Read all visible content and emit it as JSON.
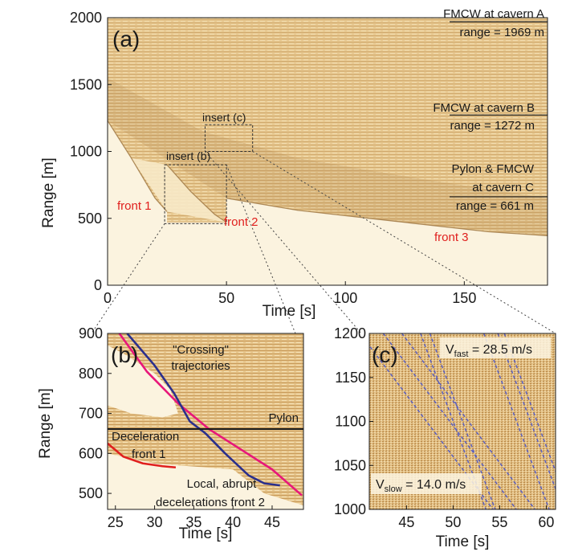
{
  "colors": {
    "background": "#ffffff",
    "data_light": "#fbf3df",
    "data_mid": "#e8c98f",
    "data_dark": "#b98c4c",
    "front_text": "#e0201e",
    "magenta_line": "#e8177a",
    "blue_line": "#2b2f8c",
    "dashed_blue": "#5a5fc0"
  },
  "chart_data": [
    {
      "id": "a",
      "type": "heatmap",
      "panel_label": "(a)",
      "xlabel": "Time [s]",
      "ylabel": "Range [m]",
      "xlim": [
        0,
        185
      ],
      "ylim": [
        0,
        2000
      ],
      "xticks": [
        "0",
        "50",
        "100",
        "150"
      ],
      "xtick_values": [
        0,
        50,
        100,
        150
      ],
      "yticks": [
        "0",
        "500",
        "1000",
        "1500",
        "2000"
      ],
      "ytick_values": [
        0,
        500,
        1000,
        1500,
        2000
      ],
      "annotations": {
        "cavern_a_title": "FMCW at cavern A",
        "cavern_a_range": "range = 1969 m",
        "cavern_a_value": 1969,
        "cavern_b_title": "FMCW at cavern B",
        "cavern_b_range": "range = 1272 m",
        "cavern_b_value": 1272,
        "cavern_c_title": "Pylon & FMCW",
        "cavern_c_title2": "at cavern C",
        "cavern_c_range": "range = 661 m",
        "cavern_c_value": 661,
        "insert_b": "insert (b)",
        "insert_c": "insert (c)",
        "front_1": "front 1",
        "front_2": "front 2",
        "front_3": "front 3"
      },
      "insert_b_box": {
        "t": [
          24,
          50
        ],
        "r": [
          460,
          900
        ]
      },
      "insert_c_box": {
        "t": [
          41,
          61
        ],
        "r": [
          1000,
          1200
        ]
      },
      "front_edges": [
        {
          "name": "front 1",
          "t": [
            0,
            10,
            20,
            25
          ],
          "r": [
            1230,
            950,
            650,
            550
          ]
        },
        {
          "name": "front 2",
          "t": [
            25,
            35,
            45,
            50
          ],
          "r": [
            900,
            700,
            530,
            470
          ]
        },
        {
          "name": "front 3",
          "t": [
            50,
            80,
            120,
            160,
            185
          ],
          "r": [
            650,
            560,
            480,
            400,
            370
          ]
        }
      ]
    },
    {
      "id": "b",
      "type": "heatmap",
      "panel_label": "(b)",
      "xlabel": "Time [s]",
      "ylabel": "Range [m]",
      "xlim": [
        24,
        49
      ],
      "ylim": [
        460,
        900
      ],
      "xticks": [
        "25",
        "30",
        "35",
        "40",
        "45"
      ],
      "xtick_values": [
        25,
        30,
        35,
        40,
        45
      ],
      "yticks": [
        "500",
        "600",
        "700",
        "800",
        "900"
      ],
      "ytick_values": [
        500,
        600,
        700,
        800,
        900
      ],
      "annotations": {
        "crossing_1": "\"Crossing\"",
        "crossing_2": "trajectories",
        "pylon": "Pylon",
        "pylon_range": 661,
        "deceleration_1": "Deceleration",
        "deceleration_2": "front 1",
        "local_1": "Local, abrupt",
        "local_2": "decelerations front 2"
      },
      "series": [
        {
          "name": "magenta",
          "x": [
            25.5,
            29,
            33,
            37,
            41,
            45,
            48.8
          ],
          "y": [
            900,
            805,
            725,
            660,
            610,
            560,
            495
          ]
        },
        {
          "name": "blue",
          "x": [
            26.5,
            30,
            32.5,
            34.5,
            36.5,
            39,
            42,
            44,
            46
          ],
          "y": [
            900,
            820,
            750,
            680,
            650,
            600,
            545,
            525,
            520
          ]
        },
        {
          "name": "red_front1",
          "x": [
            24,
            26,
            28.5,
            31,
            32.7
          ],
          "y": [
            625,
            592,
            575,
            568,
            565
          ]
        }
      ]
    },
    {
      "id": "c",
      "type": "heatmap",
      "panel_label": "(c)",
      "xlabel": "Time [s]",
      "ylabel": "",
      "xlim": [
        41,
        61
      ],
      "ylim": [
        1000,
        1200
      ],
      "xticks": [
        "45",
        "50",
        "55",
        "60"
      ],
      "xtick_values": [
        45,
        50,
        55,
        60
      ],
      "yticks": [
        "1000",
        "1050",
        "1100",
        "1150",
        "1200"
      ],
      "ytick_values": [
        1000,
        1050,
        1100,
        1150,
        1200
      ],
      "annotations": {
        "v_fast_sym": "V",
        "v_fast_sub": "fast",
        "v_fast_val": " = 28.5 m/s",
        "v_slow_sym": "V",
        "v_slow_sub": "slow",
        "v_slow_val": " = 14.0 m/s"
      },
      "fast_velocity": 28.5,
      "slow_velocity": 14.0,
      "fast_lines_start_t": [
        46.5,
        47.5,
        53.3,
        54.8,
        55.5
      ],
      "slow_lines_start_t": [
        40,
        42.5,
        44.5
      ]
    }
  ]
}
